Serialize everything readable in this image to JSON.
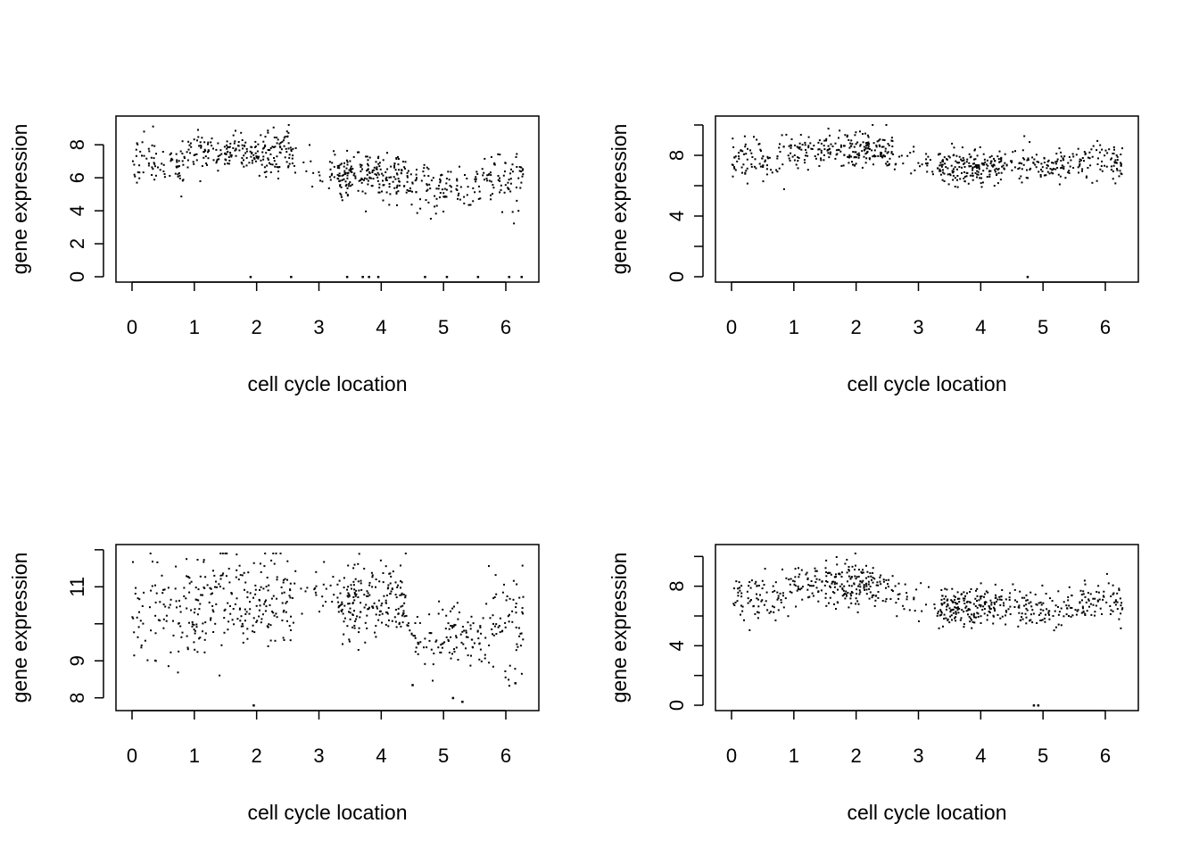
{
  "chart_data": [
    {
      "type": "scatter",
      "xlabel": "cell cycle location",
      "ylabel": "gene expression",
      "xlim": [
        0,
        6.28
      ],
      "ylim": [
        0,
        9.2
      ],
      "x_ticks": [
        "0",
        "1",
        "2",
        "3",
        "4",
        "5",
        "6"
      ],
      "y_ticks": [
        "0",
        "2",
        "4",
        "6",
        "8"
      ],
      "y_minor_ticks": [],
      "grid": false,
      "clusters": [
        {
          "x": [
            0.0,
            0.9
          ],
          "center": 6.8,
          "spread": 0.9,
          "n": 80
        },
        {
          "x": [
            0.9,
            2.6
          ],
          "center": 7.6,
          "spread": 0.75,
          "n": 220
        },
        {
          "x": [
            2.6,
            3.3
          ],
          "center": 6.6,
          "spread": 0.9,
          "n": 25
        },
        {
          "x": [
            3.3,
            4.4
          ],
          "center": 6.1,
          "spread": 0.85,
          "n": 190
        },
        {
          "x": [
            4.4,
            5.6
          ],
          "center": 5.4,
          "spread": 0.8,
          "n": 110
        },
        {
          "x": [
            5.6,
            6.28
          ],
          "center": 6.0,
          "spread": 1.0,
          "n": 70
        }
      ],
      "extra_points": [
        {
          "x": 1.9,
          "y": 0
        },
        {
          "x": 2.55,
          "y": 0
        },
        {
          "x": 3.45,
          "y": 0
        },
        {
          "x": 3.7,
          "y": 0
        },
        {
          "x": 3.8,
          "y": 0
        },
        {
          "x": 3.95,
          "y": 0
        },
        {
          "x": 4.7,
          "y": 0
        },
        {
          "x": 5.05,
          "y": 0
        },
        {
          "x": 5.55,
          "y": 0
        },
        {
          "x": 6.05,
          "y": 0
        },
        {
          "x": 6.25,
          "y": 0
        }
      ]
    },
    {
      "type": "scatter",
      "xlabel": "cell cycle location",
      "ylabel": "gene expression",
      "xlim": [
        0,
        6.28
      ],
      "ylim": [
        0,
        10
      ],
      "x_ticks": [
        "0",
        "1",
        "2",
        "3",
        "4",
        "5",
        "6"
      ],
      "y_ticks": [
        "0",
        "4",
        "8"
      ],
      "y_minor_ticks": [
        2,
        6,
        10
      ],
      "grid": false,
      "clusters": [
        {
          "x": [
            0.0,
            0.9
          ],
          "center": 7.8,
          "spread": 0.9,
          "n": 80
        },
        {
          "x": [
            0.9,
            2.6
          ],
          "center": 8.4,
          "spread": 0.7,
          "n": 220
        },
        {
          "x": [
            2.6,
            3.3
          ],
          "center": 7.5,
          "spread": 0.8,
          "n": 25
        },
        {
          "x": [
            3.3,
            4.4
          ],
          "center": 7.2,
          "spread": 0.65,
          "n": 190
        },
        {
          "x": [
            4.4,
            5.6
          ],
          "center": 7.4,
          "spread": 0.6,
          "n": 110
        },
        {
          "x": [
            5.6,
            6.28
          ],
          "center": 7.6,
          "spread": 0.7,
          "n": 70
        }
      ],
      "extra_points": [
        {
          "x": 4.75,
          "y": 0
        }
      ]
    },
    {
      "type": "scatter",
      "xlabel": "cell cycle location",
      "ylabel": "gene expression",
      "xlim": [
        0,
        6.28
      ],
      "ylim": [
        7.8,
        11.9
      ],
      "x_ticks": [
        "0",
        "1",
        "2",
        "3",
        "4",
        "5",
        "6"
      ],
      "y_ticks": [
        "8",
        "9",
        "11"
      ],
      "y_minor_ticks": [
        10,
        12
      ],
      "grid": false,
      "clusters": [
        {
          "x": [
            0.0,
            0.9
          ],
          "center": 10.3,
          "spread": 0.85,
          "n": 80
        },
        {
          "x": [
            0.9,
            2.6
          ],
          "center": 10.6,
          "spread": 0.75,
          "n": 220
        },
        {
          "x": [
            2.6,
            3.3
          ],
          "center": 11.0,
          "spread": 0.45,
          "n": 25
        },
        {
          "x": [
            3.3,
            4.4
          ],
          "center": 10.6,
          "spread": 0.6,
          "n": 190
        },
        {
          "x": [
            4.4,
            5.6
          ],
          "center": 9.7,
          "spread": 0.45,
          "n": 110
        },
        {
          "x": [
            5.6,
            6.28
          ],
          "center": 10.0,
          "spread": 0.85,
          "n": 70
        }
      ],
      "extra_points": [
        {
          "x": 1.95,
          "y": 7.8
        },
        {
          "x": 5.15,
          "y": 8.0
        },
        {
          "x": 5.3,
          "y": 7.9
        },
        {
          "x": 4.5,
          "y": 8.35
        },
        {
          "x": 6.15,
          "y": 8.4
        }
      ]
    },
    {
      "type": "scatter",
      "xlabel": "cell cycle location",
      "ylabel": "gene expression",
      "xlim": [
        0,
        6.28
      ],
      "ylim": [
        0,
        10.2
      ],
      "x_ticks": [
        "0",
        "1",
        "2",
        "3",
        "4",
        "5",
        "6"
      ],
      "y_ticks": [
        "0",
        "4",
        "8"
      ],
      "y_minor_ticks": [
        2,
        6,
        10
      ],
      "grid": false,
      "clusters": [
        {
          "x": [
            0.0,
            0.9
          ],
          "center": 7.2,
          "spread": 1.0,
          "n": 80
        },
        {
          "x": [
            0.9,
            2.6
          ],
          "center": 8.1,
          "spread": 0.85,
          "n": 220
        },
        {
          "x": [
            2.6,
            3.3
          ],
          "center": 7.0,
          "spread": 0.9,
          "n": 25
        },
        {
          "x": [
            3.3,
            4.4
          ],
          "center": 6.6,
          "spread": 0.75,
          "n": 190
        },
        {
          "x": [
            4.4,
            5.6
          ],
          "center": 6.5,
          "spread": 0.7,
          "n": 110
        },
        {
          "x": [
            5.6,
            6.28
          ],
          "center": 6.9,
          "spread": 0.8,
          "n": 70
        }
      ],
      "extra_points": [
        {
          "x": 4.85,
          "y": 0
        },
        {
          "x": 4.92,
          "y": 0
        }
      ]
    }
  ]
}
